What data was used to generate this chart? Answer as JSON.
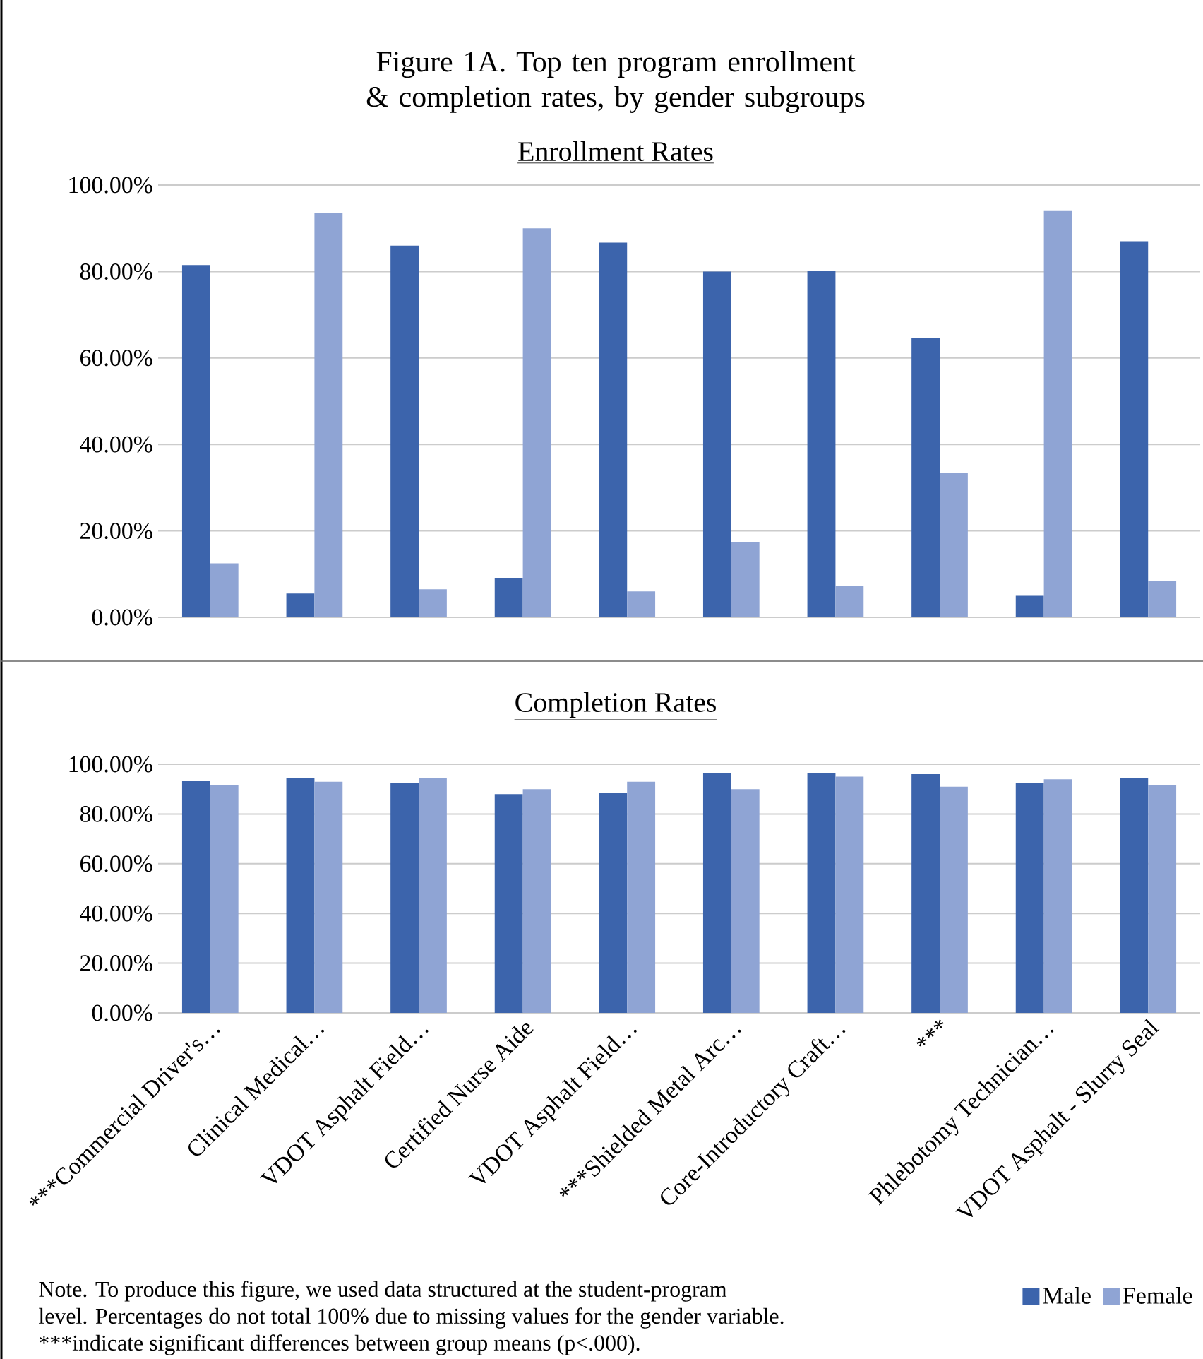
{
  "chart_data": [
    {
      "type": "bar",
      "title": "Figure 1A. Top ten program enrollment & completion rates, by gender subgroups",
      "subtitle": "Enrollment Rates",
      "categories": [
        null,
        null,
        null,
        null,
        null,
        null,
        null,
        null,
        null,
        null
      ],
      "series": [
        {
          "color": "#3c64ac",
          "values": [
            81.5,
            5.5,
            86,
            9,
            86.7,
            80,
            80.2,
            64.7,
            5,
            87
          ]
        },
        {
          "color": "#8fa4d4",
          "values": [
            12.5,
            93.5,
            6.5,
            90,
            6,
            17.5,
            7.2,
            33.5,
            94,
            8.5
          ]
        }
      ],
      "ylim": [
        0,
        100
      ],
      "yticks": [
        {
          "value": 0,
          "label": "0.00%"
        },
        {
          "value": 20,
          "label": "20.00%"
        },
        {
          "value": 40,
          "label": "40.00%"
        },
        {
          "value": 60,
          "label": "60.00%"
        },
        {
          "value": 80,
          "label": "80.00%"
        },
        {
          "value": 100,
          "label": "100.00%"
        }
      ],
      "grid": "y",
      "tick_labels": "y"
    },
    {
      "type": "bar",
      "title": "Completion Rates",
      "categories": [
        "***Commercial Driver's…",
        "Clinical Medical…",
        "VDOT Asphalt Field…",
        "Certified Nurse Aide",
        "VDOT Asphalt Field…",
        "***Shielded Metal Arc…",
        "Core-Introductory Craft…",
        "***",
        "Phlebotomy Technician…",
        "VDOT Asphalt - Slurry Seal"
      ],
      "series": [
        {
          "name": "Male",
          "color": "#3c64ac",
          "values": [
            93.5,
            94.5,
            92.5,
            88,
            88.5,
            96.5,
            96.5,
            96,
            92.5,
            94.5
          ]
        },
        {
          "name": "Female",
          "color": "#8fa4d4",
          "values": [
            91.5,
            93,
            94.5,
            90,
            93,
            90,
            95,
            91,
            94,
            91.5
          ]
        }
      ],
      "ylim": [
        0,
        100
      ],
      "yticks": [
        {
          "value": 0,
          "label": "0.00%"
        },
        {
          "value": 20,
          "label": "20.00%"
        },
        {
          "value": 40,
          "label": "40.00%"
        },
        {
          "value": 60,
          "label": "60.00%"
        },
        {
          "value": 80,
          "label": "80.00%"
        },
        {
          "value": 100,
          "label": "100.00%"
        }
      ],
      "grid": "y",
      "legend": "bottom right",
      "annotations": [
        "Note. To produce this figure, we used data structured at the student-program",
        "level. Percentages do not total 100% due to missing values for the gender variable.",
        "***indicate significant differences between group means (p<.000)."
      ]
    }
  ]
}
